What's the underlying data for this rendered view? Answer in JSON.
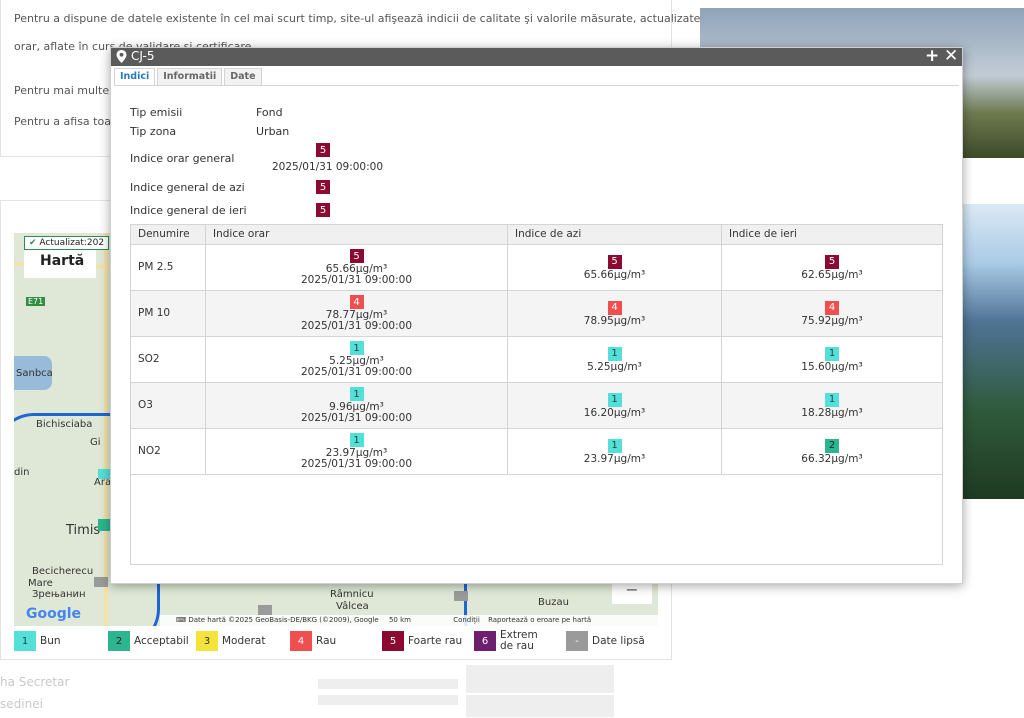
{
  "background": {
    "para1": "Pentru a dispune de datele existente în cel mai scurt timp, site-ul afişează indicii de calitate şi valorile măsurate, actualizate",
    "para1b": "orar, aflate în curs de validare şi certificare.",
    "para2": "Pentru mai multe i",
    "para3": "Pentru a afisa toat",
    "bottom_text": "ha Secretar",
    "bottom_text2": "sedinei"
  },
  "map": {
    "updated_label": "Actualizat:202",
    "title": "Hartă",
    "labels": {
      "sanbca": "Sanbca",
      "bichisciaba": "Bichisciaba",
      "timis": "Timis",
      "becicherecu": "Becicherecu",
      "mare": "Mare",
      "zrenjanin": "Зрењанин",
      "ramnicu": "Râmnicu",
      "valcea": "Vâlcea",
      "buzau": "Buzau",
      "din": "din",
      "ara": "Ara",
      "gi": "Gi",
      "e71": "E71"
    },
    "google": "Google",
    "footer_text": "Date hartă ©2025 GeoBasis-DE/BKG (©2009), Google",
    "scale": "50 km",
    "terms": "Condiţii",
    "report": "Raportează o eroare pe hartă",
    "zoom_minus": "−"
  },
  "legend": [
    {
      "code": "1",
      "label": "Bun",
      "class": "b1"
    },
    {
      "code": "2",
      "label": "Acceptabil",
      "class": "b2"
    },
    {
      "code": "3",
      "label": "Moderat",
      "class": "b3"
    },
    {
      "code": "4",
      "label": "Rau",
      "class": "b4"
    },
    {
      "code": "5",
      "label": "Foarte rau",
      "class": "b5"
    },
    {
      "code": "6",
      "label": "Extrem de rau",
      "class": "b6"
    },
    {
      "code": "-",
      "label": "Date lipsă",
      "class": "bnull"
    }
  ],
  "popup": {
    "title": "CJ-5",
    "tabs": [
      "Indici",
      "Informatii",
      "Date"
    ],
    "info": {
      "tip_emisii_label": "Tip emisii",
      "tip_emisii": "Fond",
      "tip_zona_label": "Tip zona",
      "tip_zona": "Urban",
      "indice_orar_label": "Indice orar general",
      "indice_orar": "5",
      "indice_orar_time": "2025/01/31 09:00:00",
      "indice_azi_label": "Indice general de azi",
      "indice_azi": "5",
      "indice_ieri_label": "Indice general de ieri",
      "indice_ieri": "5"
    },
    "table": {
      "headers": [
        "Denumire",
        "Indice orar",
        "Indice de azi",
        "Indice de ieri"
      ],
      "rows": [
        {
          "name": "PM 2.5",
          "orar_idx": "5",
          "orar_val": "65.66µg/m³",
          "orar_time": "2025/01/31 09:00:00",
          "azi_idx": "5",
          "azi_val": "65.66µg/m³",
          "ieri_idx": "5",
          "ieri_val": "62.65µg/m³"
        },
        {
          "name": "PM 10",
          "orar_idx": "4",
          "orar_val": "78.77µg/m³",
          "orar_time": "2025/01/31 09:00:00",
          "azi_idx": "4",
          "azi_val": "78.95µg/m³",
          "ieri_idx": "4",
          "ieri_val": "75.92µg/m³"
        },
        {
          "name": "SO2",
          "orar_idx": "1",
          "orar_val": "5.25µg/m³",
          "orar_time": "2025/01/31 09:00:00",
          "azi_idx": "1",
          "azi_val": "5.25µg/m³",
          "ieri_idx": "1",
          "ieri_val": "15.60µg/m³"
        },
        {
          "name": "O3",
          "orar_idx": "1",
          "orar_val": "9.96µg/m³",
          "orar_time": "2025/01/31 09:00:00",
          "azi_idx": "1",
          "azi_val": "16.20µg/m³",
          "ieri_idx": "1",
          "ieri_val": "18.28µg/m³"
        },
        {
          "name": "NO2",
          "orar_idx": "1",
          "orar_val": "23.97µg/m³",
          "orar_time": "2025/01/31 09:00:00",
          "azi_idx": "1",
          "azi_val": "23.97µg/m³",
          "ieri_idx": "2",
          "ieri_val": "66.32µg/m³"
        }
      ]
    }
  }
}
